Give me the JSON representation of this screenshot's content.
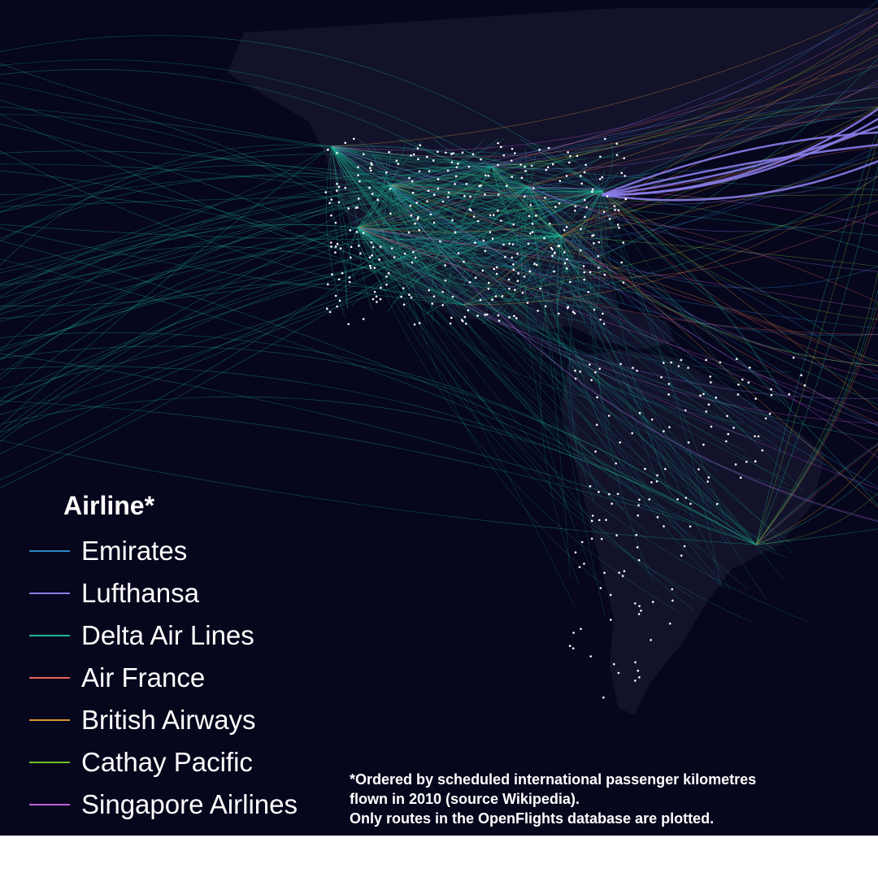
{
  "legend": {
    "title": "Airline*",
    "items": [
      {
        "label": "Emirates",
        "color": "#2b86c9"
      },
      {
        "label": "Lufthansa",
        "color": "#8a7ce8"
      },
      {
        "label": "Delta Air Lines",
        "color": "#1fb89a"
      },
      {
        "label": "Air France",
        "color": "#e8645a"
      },
      {
        "label": "British Airways",
        "color": "#d6962e"
      },
      {
        "label": "Cathay Pacific",
        "color": "#6fbf2e"
      },
      {
        "label": "Singapore Airlines",
        "color": "#c25fd6"
      }
    ]
  },
  "footnote": {
    "line1": "*Ordered by scheduled international passenger kilometres",
    "line2": "flown in 2010 (source Wikipedia).",
    "line3": "Only routes in the OpenFlights database are plotted."
  },
  "colors": {
    "background": "#06061c",
    "land": "#14142e",
    "airport_dot": "#ffffff"
  }
}
